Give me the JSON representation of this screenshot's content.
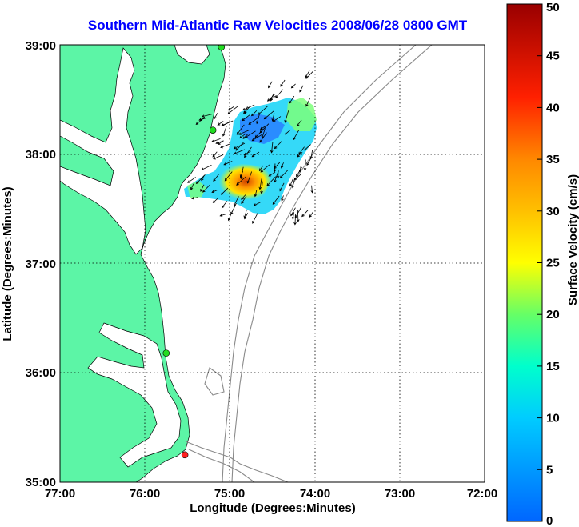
{
  "title": "Southern Mid-Atlantic Raw Velocities 2008/06/28 0800 GMT",
  "x_axis": {
    "label": "Longitude (Degrees:Minutes)",
    "ticks": [
      "77:00",
      "76:00",
      "75:00",
      "74:00",
      "73:00",
      "72:00"
    ]
  },
  "y_axis": {
    "label": "Latitude (Degrees:Minutes)",
    "ticks": [
      "39:00",
      "38:00",
      "37:00",
      "36:00",
      "35:00"
    ]
  },
  "colorbar": {
    "label": "Surface Velocity (cm/s)",
    "ticks": [
      "0",
      "5",
      "10",
      "15",
      "20",
      "25",
      "30",
      "35",
      "40",
      "45",
      "50"
    ],
    "min": 0,
    "max": 50
  },
  "colors": {
    "land": "#5cf5a6",
    "title": "#0000ff",
    "station_green": "#22dd22",
    "station_red": "#ff2020",
    "bathymetry": "#8a8a8a"
  },
  "lon_range": [
    -77,
    -72
  ],
  "lat_range": [
    35,
    39
  ],
  "stations": [
    {
      "lon": -75.1,
      "lat": 38.98,
      "color": "green"
    },
    {
      "lon": -75.2,
      "lat": 38.22,
      "color": "green"
    },
    {
      "lon": -75.75,
      "lat": 36.18,
      "color": "green"
    },
    {
      "lon": -75.53,
      "lat": 35.25,
      "color": "red"
    }
  ]
}
